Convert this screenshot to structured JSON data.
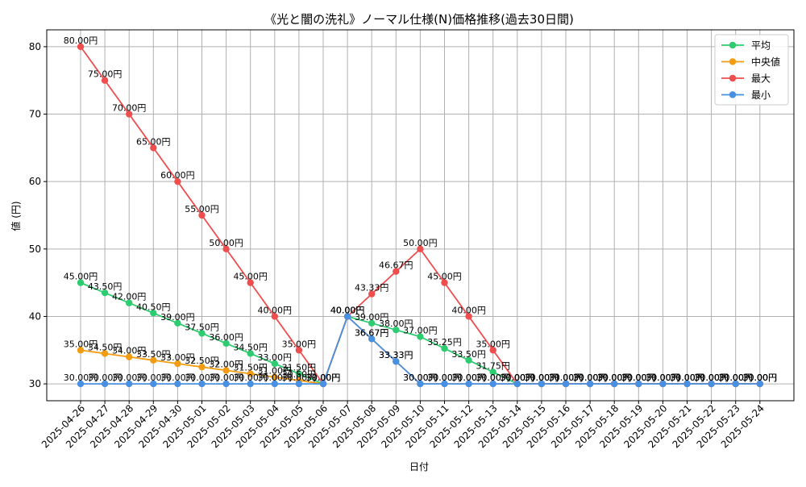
{
  "chart_data": {
    "type": "line",
    "title": "《光と闇の洗礼》ノーマル仕様(N)価格推移(過去30日間)",
    "xlabel": "日付",
    "ylabel": "値 (円)",
    "ylim": [
      27.5,
      82.5
    ],
    "yticks": [
      30,
      40,
      50,
      60,
      70,
      80
    ],
    "grid": true,
    "legend_position": "top-right",
    "label_suffix": "円",
    "categories": [
      "2025-04-26",
      "2025-04-27",
      "2025-04-28",
      "2025-04-29",
      "2025-04-30",
      "2025-05-01",
      "2025-05-02",
      "2025-05-03",
      "2025-05-04",
      "2025-05-05",
      "2025-05-06",
      "2025-05-07",
      "2025-05-08",
      "2025-05-09",
      "2025-05-10",
      "2025-05-11",
      "2025-05-12",
      "2025-05-13",
      "2025-05-14",
      "2025-05-15",
      "2025-05-16",
      "2025-05-17",
      "2025-05-18",
      "2025-05-19",
      "2025-05-20",
      "2025-05-21",
      "2025-05-22",
      "2025-05-23",
      "2025-05-24"
    ],
    "series": [
      {
        "name": "平均",
        "color": "#2ecc71",
        "values": [
          45.0,
          43.5,
          42.0,
          40.5,
          39.0,
          37.5,
          36.0,
          34.5,
          33.0,
          31.5,
          30.0,
          40.0,
          39.0,
          38.0,
          37.0,
          35.25,
          33.5,
          31.75,
          30.0,
          30.0,
          30.0,
          30.0,
          30.0,
          30.0,
          30.0,
          30.0,
          30.0,
          30.0,
          30.0
        ]
      },
      {
        "name": "中央値",
        "color": "#f39c12",
        "values": [
          35.0,
          34.5,
          34.0,
          33.5,
          33.0,
          32.5,
          32.0,
          31.5,
          31.0,
          30.5,
          30.0,
          40.0,
          36.67,
          33.33,
          30.0,
          30.0,
          30.0,
          30.0,
          30.0,
          30.0,
          30.0,
          30.0,
          30.0,
          30.0,
          30.0,
          30.0,
          30.0,
          30.0,
          30.0
        ]
      },
      {
        "name": "最大",
        "color": "#f04e4e",
        "values": [
          80.0,
          75.0,
          70.0,
          65.0,
          60.0,
          55.0,
          50.0,
          45.0,
          40.0,
          35.0,
          30.0,
          40.0,
          43.33,
          46.67,
          50.0,
          45.0,
          40.0,
          35.0,
          30.0,
          30.0,
          30.0,
          30.0,
          30.0,
          30.0,
          30.0,
          30.0,
          30.0,
          30.0,
          30.0
        ]
      },
      {
        "name": "最小",
        "color": "#4a90e2",
        "values": [
          30.0,
          30.0,
          30.0,
          30.0,
          30.0,
          30.0,
          30.0,
          30.0,
          30.0,
          30.0,
          30.0,
          40.0,
          36.67,
          33.33,
          30.0,
          30.0,
          30.0,
          30.0,
          30.0,
          30.0,
          30.0,
          30.0,
          30.0,
          30.0,
          30.0,
          30.0,
          30.0,
          30.0,
          30.0
        ]
      }
    ]
  }
}
